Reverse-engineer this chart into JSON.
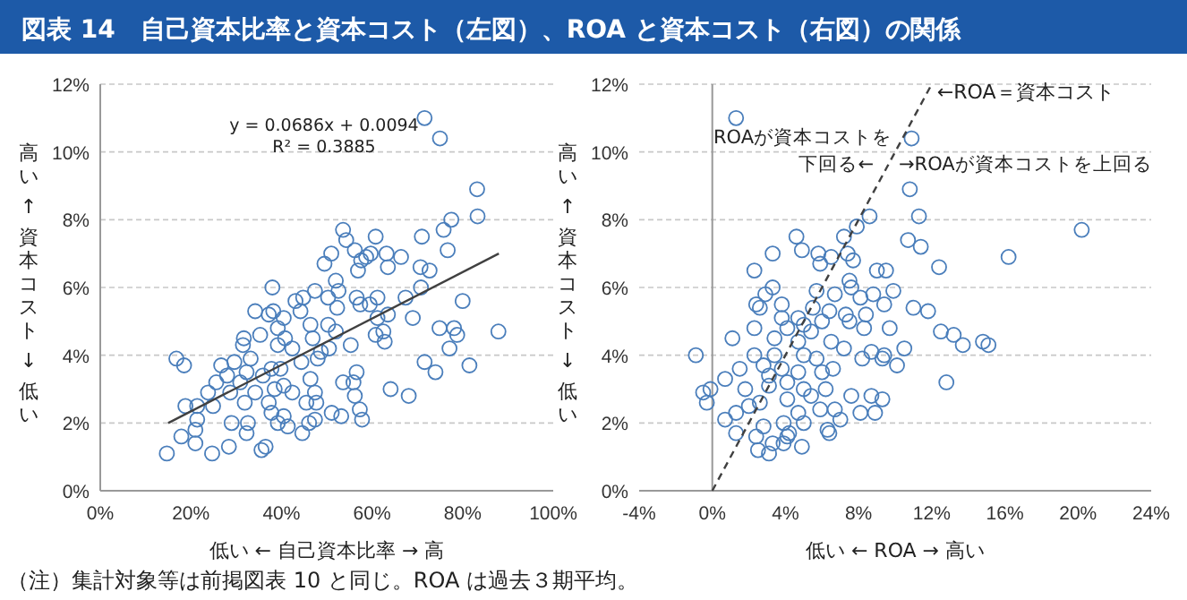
{
  "chart_data": [
    {
      "type": "scatter",
      "title": "図表 14　自己資本比率と資本コスト（左図）、ROA と資本コスト（右図）の関係",
      "xlabel": "低い ← 自己資本比率 → 高",
      "ylabel": "高い ↑ 資本コスト ↓ 低い",
      "xlim": [
        0,
        100
      ],
      "ylim": [
        0,
        12
      ],
      "xticks": [
        {
          "value": 0,
          "label": "0%"
        },
        {
          "value": 20,
          "label": "20%"
        },
        {
          "value": 40,
          "label": "40%"
        },
        {
          "value": 60,
          "label": "60%"
        },
        {
          "value": 80,
          "label": "80%"
        },
        {
          "value": 100,
          "label": "100%"
        }
      ],
      "yticks": [
        {
          "value": 0,
          "label": "0%"
        },
        {
          "value": 2,
          "label": "2%"
        },
        {
          "value": 4,
          "label": "4%"
        },
        {
          "value": 6,
          "label": "6%"
        },
        {
          "value": 8,
          "label": "8%"
        },
        {
          "value": 10,
          "label": "10%"
        },
        {
          "value": 12,
          "label": "12%"
        }
      ],
      "grid": "y",
      "marker": "circle",
      "annotations": [
        "y = 0.0686x + 0.0094",
        "R² = 0.3885",
        "（注）集計対象等は前掲図表 10 と同じ。ROA は過去３期平均。"
      ],
      "series": [
        {
          "type": "scatter",
          "color": "#4a7ebb",
          "x": [
            71.6,
            75.0,
            83.2,
            83.3,
            77.5,
            75.8,
            71.0,
            76.7,
            53.6,
            54.3,
            60.8,
            56.2,
            51.0,
            49.5,
            59.7,
            63.2,
            66.4,
            57.6,
            58.7,
            56.9,
            63.5,
            70.7,
            72.7,
            52.0,
            38.0,
            70.8,
            47.4,
            52.6,
            44.8,
            50.3,
            67.4,
            61.2,
            56.6,
            43.1,
            57.4,
            80.0,
            59.5,
            52.3,
            44.2,
            34.2,
            38.2,
            37.2,
            40.5,
            63.5,
            69.0,
            61.2,
            46.4,
            50.3,
            39.2,
            74.9,
            78.1,
            78.8,
            87.9,
            62.5,
            60.8,
            52.0,
            31.7,
            35.3,
            40.8,
            46.9,
            62.8,
            55.3,
            77.1,
            31.5,
            39.2,
            42.4,
            50.5,
            16.8,
            18.5,
            26.7,
            29.6,
            33.2,
            44.4,
            48.0,
            48.7,
            71.6,
            81.5,
            74.0,
            56.6,
            28.0,
            32.3,
            35.9,
            37.8,
            39.8,
            25.6,
            30.9,
            40.5,
            46.4,
            53.6,
            55.9,
            64.1,
            68.1,
            23.8,
            28.7,
            34.2,
            38.5,
            42.4,
            47.4,
            18.8,
            21.4,
            24.9,
            31.9,
            37.2,
            45.5,
            47.7,
            56.2,
            57.3,
            37.8,
            40.5,
            51.1,
            53.2,
            57.8,
            21.4,
            29.0,
            32.6,
            39.2,
            41.4,
            46.1,
            47.4,
            21.0,
            32.3,
            44.6,
            17.9,
            21.0,
            28.4,
            36.5,
            35.6,
            14.7,
            24.7
          ],
          "values": [
            11.0,
            10.4,
            8.9,
            8.1,
            8.0,
            7.7,
            7.5,
            7.1,
            7.7,
            7.4,
            7.5,
            7.1,
            7.0,
            6.7,
            7.0,
            7.0,
            6.9,
            6.8,
            6.9,
            6.5,
            6.6,
            6.6,
            6.5,
            6.2,
            6.0,
            6.0,
            5.9,
            5.9,
            5.7,
            5.7,
            5.7,
            5.7,
            5.7,
            5.6,
            5.5,
            5.6,
            5.5,
            5.4,
            5.3,
            5.3,
            5.3,
            5.2,
            5.1,
            5.2,
            5.1,
            5.1,
            4.9,
            4.9,
            4.8,
            4.8,
            4.8,
            4.6,
            4.7,
            4.7,
            4.6,
            4.7,
            4.5,
            4.6,
            4.5,
            4.5,
            4.4,
            4.3,
            4.2,
            4.3,
            4.3,
            4.2,
            4.2,
            3.9,
            3.7,
            3.7,
            3.8,
            3.9,
            3.8,
            3.9,
            4.1,
            3.8,
            3.7,
            3.5,
            3.5,
            3.4,
            3.5,
            3.4,
            3.6,
            3.6,
            3.2,
            3.2,
            3.1,
            3.3,
            3.2,
            3.2,
            3.0,
            2.8,
            2.9,
            2.9,
            2.9,
            3.0,
            2.9,
            2.9,
            2.5,
            2.5,
            2.5,
            2.6,
            2.6,
            2.6,
            2.6,
            2.8,
            2.4,
            2.3,
            2.2,
            2.3,
            2.2,
            2.1,
            2.1,
            2.0,
            2.0,
            2.0,
            1.9,
            2.0,
            2.1,
            1.8,
            1.7,
            1.7,
            1.6,
            1.4,
            1.3,
            1.3,
            1.2,
            1.1,
            1.1
          ]
        },
        {
          "type": "line",
          "color": "#404040",
          "line_style": "solid",
          "marker": "none",
          "x": [
            15,
            88
          ],
          "values": [
            2.0,
            7.0
          ]
        }
      ]
    },
    {
      "type": "scatter",
      "xlabel": "低い ← ROA → 高い",
      "ylabel": "高い ↑ 資本コスト ↓ 低い",
      "xlim": [
        -4,
        24
      ],
      "ylim": [
        0,
        12
      ],
      "xticks": [
        {
          "value": -4,
          "label": "-4%"
        },
        {
          "value": 0,
          "label": "0%"
        },
        {
          "value": 4,
          "label": "4%"
        },
        {
          "value": 8,
          "label": "8%"
        },
        {
          "value": 12,
          "label": "12%"
        },
        {
          "value": 16,
          "label": "16%"
        },
        {
          "value": 20,
          "label": "20%"
        },
        {
          "value": 24,
          "label": "24%"
        }
      ],
      "yticks": [
        {
          "value": 0,
          "label": "0%"
        },
        {
          "value": 2,
          "label": "2%"
        },
        {
          "value": 4,
          "label": "4%"
        },
        {
          "value": 6,
          "label": "6%"
        },
        {
          "value": 8,
          "label": "8%"
        },
        {
          "value": 10,
          "label": "10%"
        },
        {
          "value": 12,
          "label": "12%"
        }
      ],
      "grid": "y",
      "marker": "circle",
      "annotations": [
        {
          "text": "←ROA＝資本コスト",
          "x": 12,
          "y": 12
        },
        "ROAが資本コストを",
        "下回る←",
        "→ROAが資本コストを上回る"
      ],
      "series": [
        {
          "type": "scatter",
          "color": "#4a7ebb",
          "x": [
            1.3,
            10.9,
            10.8,
            11.3,
            8.6,
            7.9,
            7.2,
            4.6,
            10.7,
            11.4,
            4.9,
            3.3,
            5.8,
            7.4,
            20.2,
            16.2,
            6.5,
            5.9,
            7.7,
            12.4,
            9.0,
            9.5,
            2.3,
            3.3,
            7.5,
            7.6,
            5.7,
            6.7,
            8.1,
            8.8,
            9.9,
            2.9,
            2.4,
            3.8,
            2.6,
            5.5,
            11.0,
            11.8,
            9.4,
            6.4,
            7.3,
            8.4,
            3.8,
            4.7,
            5.0,
            6.0,
            7.5,
            2.3,
            4.1,
            5.4,
            8.3,
            9.7,
            12.5,
            13.2,
            13.7,
            14.8,
            15.1,
            1.1,
            3.4,
            4.7,
            6.5,
            7.2,
            8.7,
            10.5,
            10.1,
            9.3,
            9.4,
            8.2,
            -0.9,
            2.3,
            3.4,
            5.0,
            5.7,
            1.5,
            2.8,
            3.1,
            3.8,
            4.7,
            6.0,
            6.6,
            0.7,
            1.8,
            3.1,
            4.1,
            5.0,
            6.2,
            12.8,
            -0.5,
            -0.1,
            -0.3,
            2.6,
            4.1,
            5.4,
            7.6,
            8.7,
            9.3,
            1.3,
            2.0,
            4.7,
            5.9,
            6.7,
            8.1,
            8.9,
            7.0,
            0.7,
            2.8,
            3.9,
            5.0,
            6.3,
            4.2,
            1.3,
            2.4,
            6.4,
            3.3,
            3.9,
            4.9,
            2.5,
            3.1,
            4.1
          ],
          "values": [
            11.0,
            10.4,
            8.9,
            8.1,
            8.1,
            7.8,
            7.5,
            7.5,
            7.4,
            7.2,
            7.1,
            7.0,
            7.0,
            7.0,
            7.7,
            6.9,
            6.9,
            6.7,
            6.8,
            6.6,
            6.5,
            6.5,
            6.5,
            6.0,
            6.2,
            6.0,
            5.9,
            5.8,
            5.7,
            5.8,
            5.9,
            5.8,
            5.5,
            5.5,
            5.4,
            5.4,
            5.4,
            5.3,
            5.5,
            5.3,
            5.2,
            5.2,
            5.1,
            5.1,
            4.9,
            5.0,
            5.0,
            4.8,
            4.8,
            4.7,
            4.8,
            4.8,
            4.7,
            4.6,
            4.3,
            4.4,
            4.3,
            4.5,
            4.5,
            4.4,
            4.4,
            4.2,
            4.1,
            4.2,
            3.7,
            3.9,
            4.0,
            3.9,
            4.0,
            4.0,
            4.0,
            4.0,
            3.9,
            3.6,
            3.7,
            3.4,
            3.6,
            3.5,
            3.5,
            3.6,
            3.3,
            3.0,
            3.1,
            3.2,
            3.0,
            3.0,
            3.2,
            2.9,
            3.0,
            2.6,
            2.6,
            2.7,
            2.8,
            2.8,
            2.8,
            2.7,
            2.3,
            2.5,
            2.3,
            2.4,
            2.4,
            2.3,
            2.3,
            2.1,
            2.1,
            1.9,
            2.0,
            2.0,
            1.8,
            1.7,
            1.7,
            1.6,
            1.7,
            1.4,
            1.4,
            1.3,
            1.2,
            1.1,
            1.6
          ]
        },
        {
          "type": "line",
          "color": "#404040",
          "line_style": "dashed",
          "marker": "none",
          "x": [
            0,
            12
          ],
          "values": [
            0,
            12
          ]
        }
      ]
    }
  ]
}
